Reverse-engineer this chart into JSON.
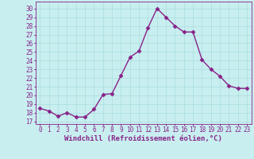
{
  "x": [
    0,
    1,
    2,
    3,
    4,
    5,
    6,
    7,
    8,
    9,
    10,
    11,
    12,
    13,
    14,
    15,
    16,
    17,
    18,
    19,
    20,
    21,
    22,
    23
  ],
  "y": [
    18.5,
    18.2,
    17.6,
    18.0,
    17.5,
    17.5,
    18.4,
    20.1,
    20.2,
    22.3,
    24.4,
    25.1,
    27.8,
    30.0,
    29.0,
    28.0,
    27.3,
    27.3,
    24.1,
    23.0,
    22.2,
    21.1,
    20.8,
    20.8
  ],
  "line_color": "#882288",
  "marker": "D",
  "marker_size": 2.5,
  "linewidth": 1.0,
  "xlabel": "Windchill (Refroidissement éolien,°C)",
  "xlabel_fontsize": 6.5,
  "ylabel_ticks": [
    17,
    18,
    19,
    20,
    21,
    22,
    23,
    24,
    25,
    26,
    27,
    28,
    29,
    30
  ],
  "ylim": [
    16.7,
    30.8
  ],
  "xlim": [
    -0.5,
    23.5
  ],
  "background_color": "#c8eef0",
  "grid_color": "#aadddd",
  "tick_color": "#882288",
  "tick_fontsize": 5.5,
  "title": ""
}
